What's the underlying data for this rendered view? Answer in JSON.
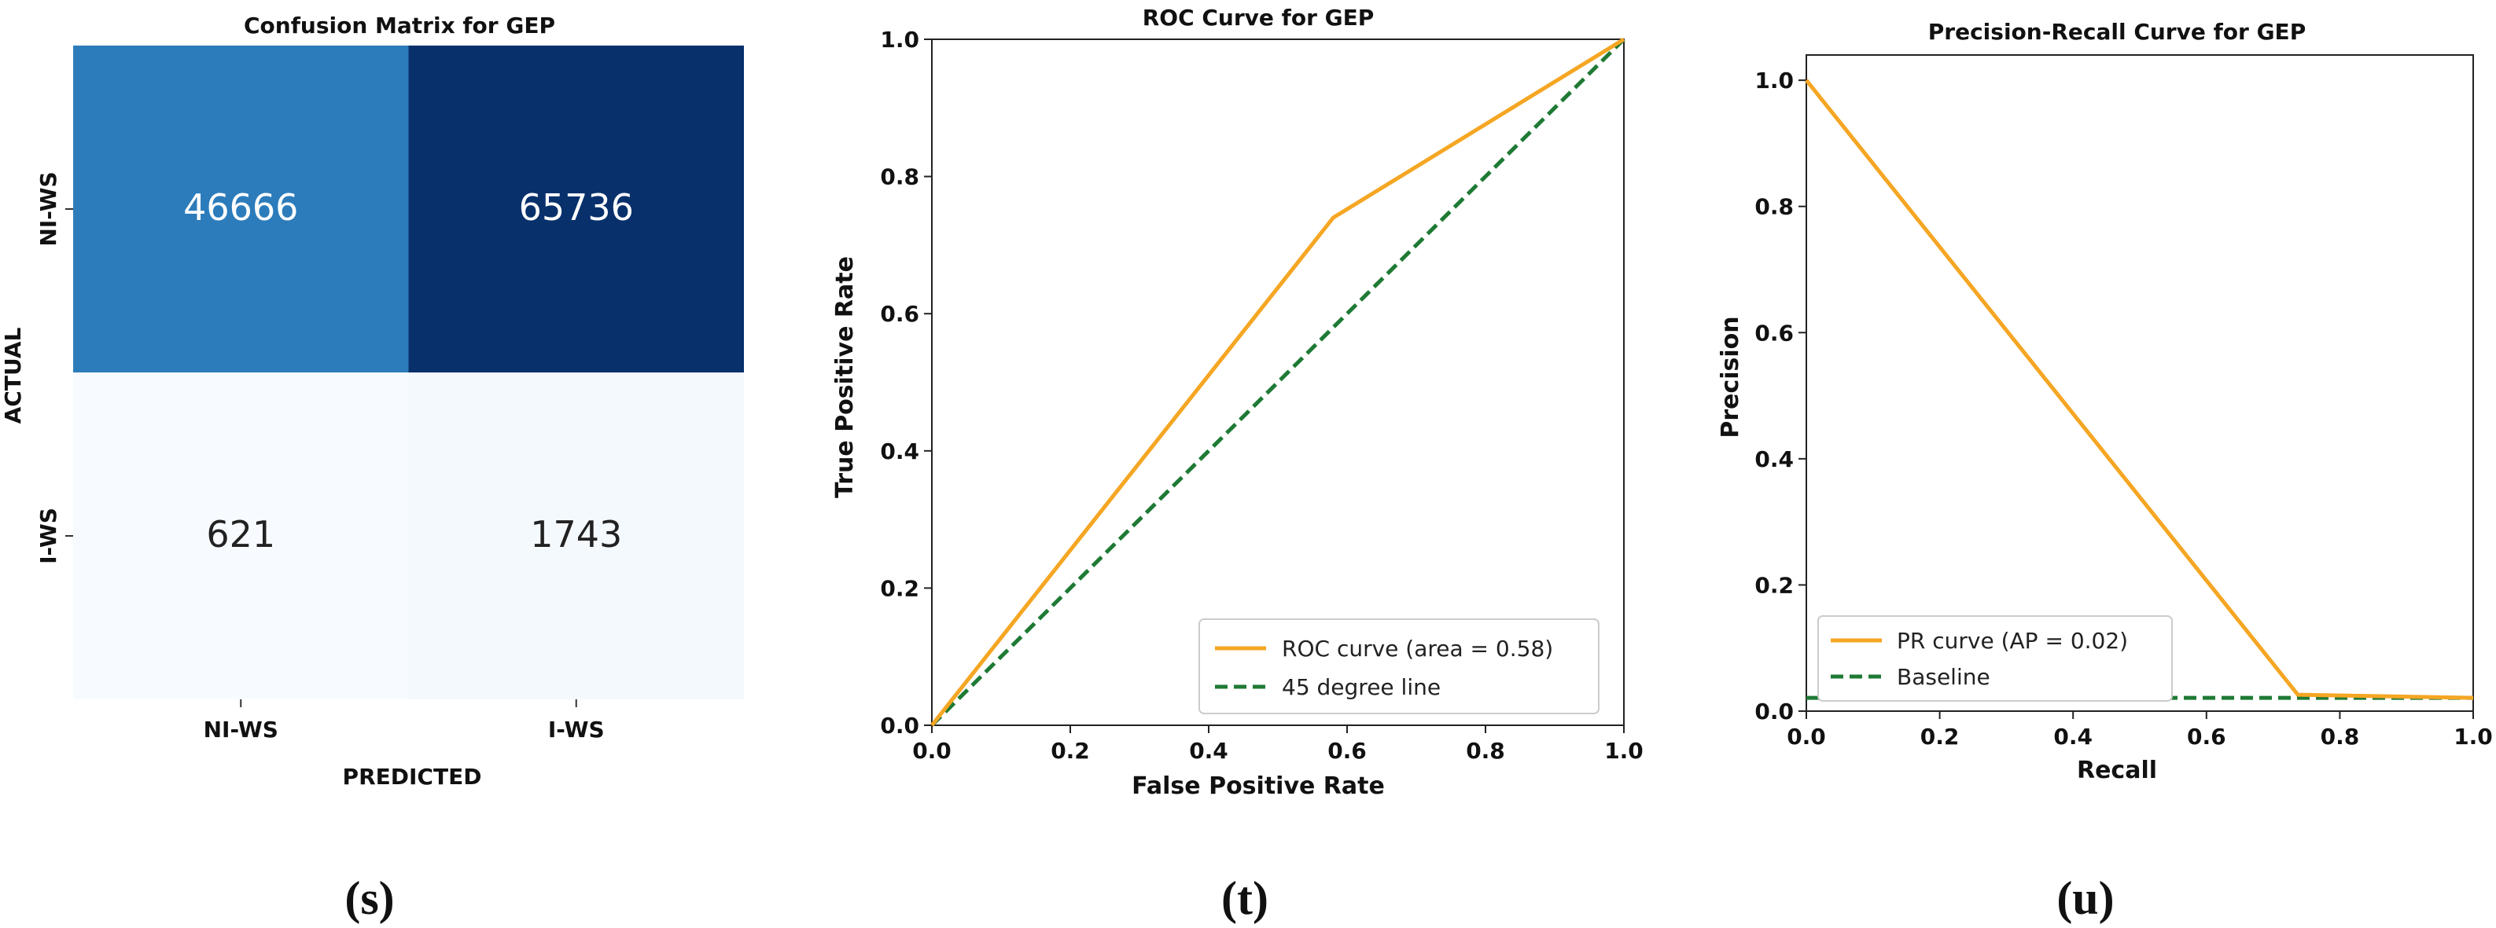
{
  "chart_data": [
    {
      "type": "heatmap",
      "title": "Confusion Matrix for GEP",
      "xlabel": "PREDICTED",
      "ylabel": "ACTUAL",
      "x_categories": [
        "NI-WS",
        "I-WS"
      ],
      "y_categories": [
        "NI-WS",
        "I-WS"
      ],
      "values": [
        [
          46666,
          65736
        ],
        [
          621,
          1743
        ]
      ],
      "value_labels": [
        [
          "46666",
          "65736"
        ],
        [
          "621",
          "1743"
        ]
      ],
      "colormap": [
        "#f7fbff",
        "#deebf7",
        "#c6dbef",
        "#9ecae1",
        "#6baed6",
        "#4292c6",
        "#2171b5",
        "#08519c",
        "#08306b"
      ],
      "text_colors": {
        "dark": "#ffffff",
        "light": "#222222"
      },
      "caption": "(s)"
    },
    {
      "type": "line",
      "title": "ROC Curve for GEP",
      "xlabel": "False Positive Rate",
      "ylabel": "True Positive Rate",
      "xlim": [
        0,
        1
      ],
      "ylim": [
        0,
        1.0
      ],
      "xticks": [
        "0.0",
        "0.2",
        "0.4",
        "0.6",
        "0.8",
        "1.0"
      ],
      "yticks": [
        "0.0",
        "0.2",
        "0.4",
        "0.6",
        "0.8",
        "1.0"
      ],
      "series": [
        {
          "name": "ROC curve (area = 0.58)",
          "color": "#f5a623",
          "style": "solid",
          "x": [
            0,
            0.58,
            1.0
          ],
          "y": [
            0,
            0.74,
            1.0
          ]
        },
        {
          "name": "45 degree line",
          "color": "#1e7a34",
          "style": "dashed",
          "x": [
            0,
            1.0
          ],
          "y": [
            0,
            1.0
          ]
        }
      ],
      "legend": "lower-right",
      "grid": false,
      "caption": "(t)"
    },
    {
      "type": "line",
      "title": "Precision-Recall Curve for GEP",
      "xlabel": "Recall",
      "ylabel": "Precision",
      "xlim": [
        0,
        1
      ],
      "ylim": [
        0,
        1.04
      ],
      "xticks": [
        "0.0",
        "0.2",
        "0.4",
        "0.6",
        "0.8",
        "1.0"
      ],
      "yticks": [
        "0.0",
        "0.2",
        "0.4",
        "0.6",
        "0.8",
        "1.0"
      ],
      "series": [
        {
          "name": "PR curve (AP = 0.02)",
          "color": "#f5a623",
          "style": "solid",
          "x": [
            0,
            0.737,
            1.0
          ],
          "y": [
            1.0,
            0.026,
            0.021
          ]
        },
        {
          "name": "Baseline",
          "color": "#1e7a34",
          "style": "dashed",
          "x": [
            0,
            1.0
          ],
          "y": [
            0.021,
            0.021
          ]
        }
      ],
      "legend": "lower-left",
      "grid": false,
      "caption": "(u)"
    }
  ]
}
